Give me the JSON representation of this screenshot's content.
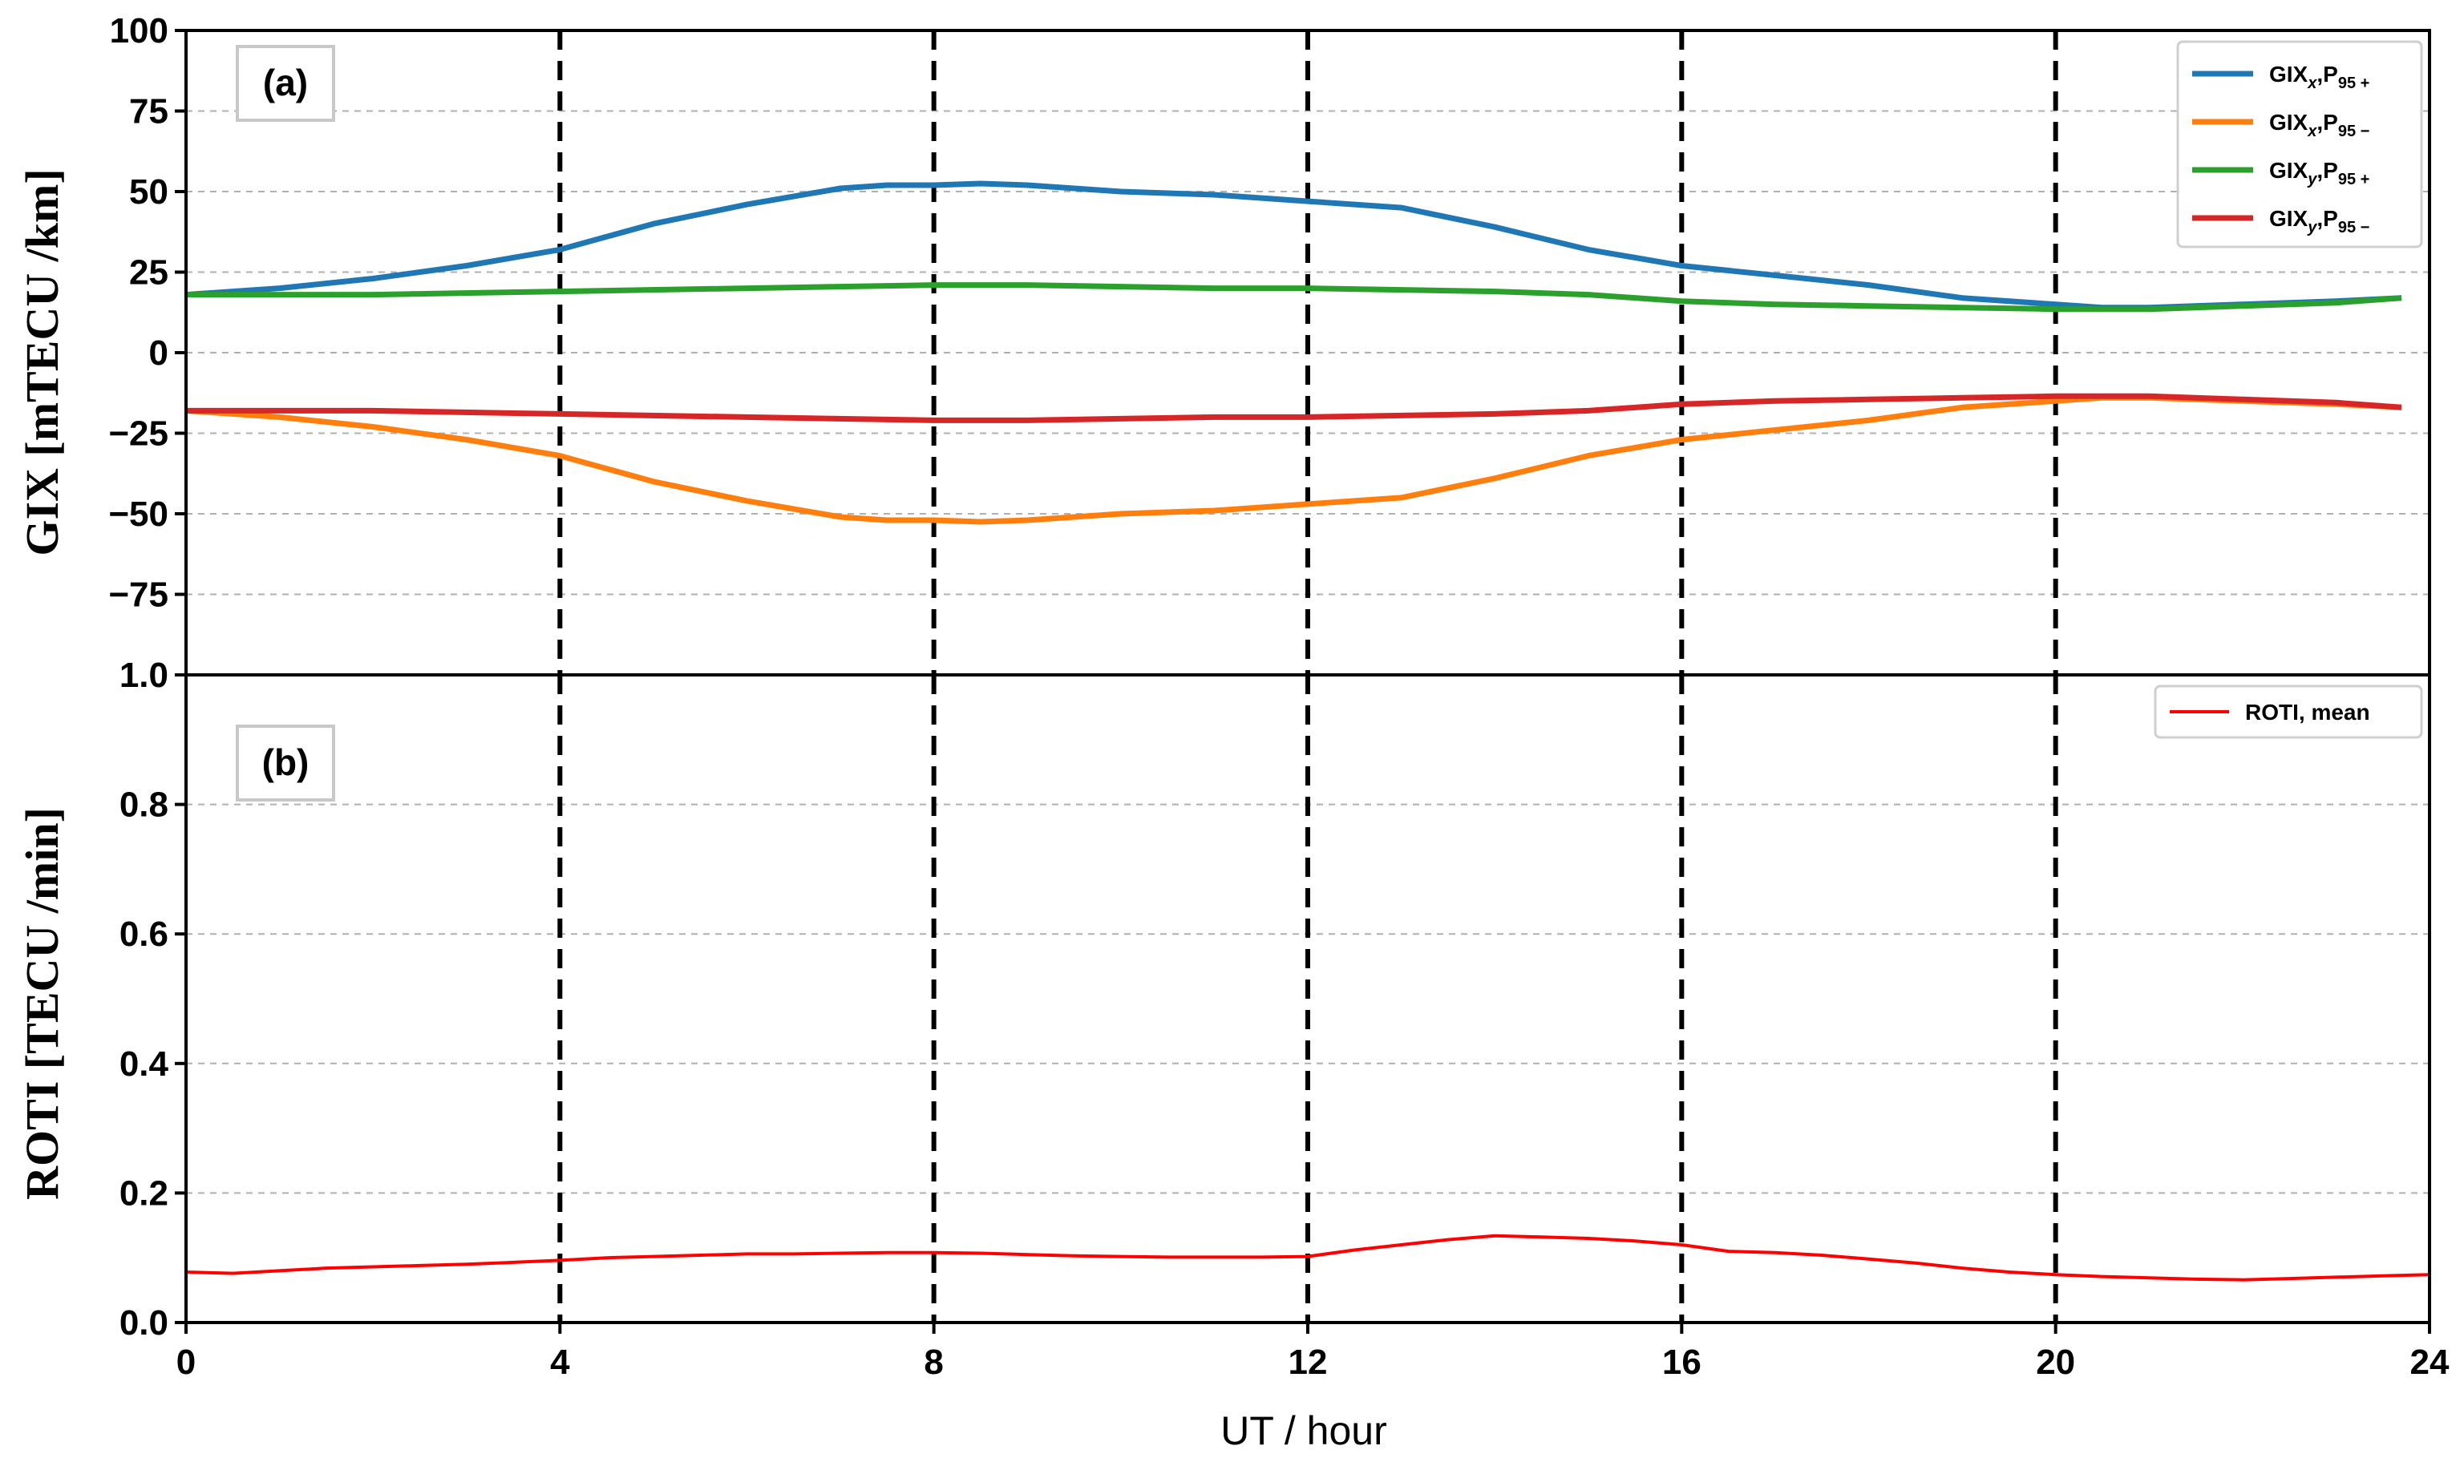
{
  "chart_data": [
    {
      "type": "line",
      "panel_label": "(a)",
      "ylabel": "GIX [mTECU /km]",
      "xlabel": "",
      "xlim": [
        0,
        24
      ],
      "ylim": [
        -100,
        100
      ],
      "yticks": [
        -100,
        -75,
        -50,
        -25,
        0,
        25,
        50,
        75,
        100
      ],
      "ytick_labels": [
        "",
        "−75",
        "−50",
        "−25",
        "0",
        "25",
        "50",
        "75",
        "100"
      ],
      "grid": "horizontal dashed",
      "legend_position": "top-right",
      "vlines": [
        4,
        8,
        12,
        16,
        20
      ],
      "series": [
        {
          "name": "GIXx,P95+",
          "legend": {
            "base": "GIX",
            "sub1": "x",
            "mid": ",P",
            "sub2": "95 +"
          },
          "color": "#1f77b4",
          "x": [
            0,
            1,
            2,
            3,
            4,
            5,
            6,
            7,
            7.5,
            8,
            8.5,
            9,
            10,
            11,
            12,
            13,
            14,
            15,
            16,
            17,
            18,
            19,
            20,
            20.5,
            21,
            22,
            23,
            23.7
          ],
          "y": [
            18,
            20,
            23,
            27,
            32,
            40,
            46,
            51,
            52,
            52,
            52.5,
            52,
            50,
            49,
            47,
            45,
            39,
            32,
            27,
            24,
            21,
            17,
            15,
            14,
            14,
            15,
            16,
            17
          ]
        },
        {
          "name": "GIXx,P95−",
          "legend": {
            "base": "GIX",
            "sub1": "x",
            "mid": ",P",
            "sub2": "95 −"
          },
          "color": "#ff7f0e",
          "x": [
            0,
            1,
            2,
            3,
            4,
            5,
            6,
            7,
            7.5,
            8,
            8.5,
            9,
            10,
            11,
            12,
            13,
            14,
            15,
            16,
            17,
            18,
            19,
            20,
            20.5,
            21,
            22,
            23,
            23.7
          ],
          "y": [
            -18,
            -20,
            -23,
            -27,
            -32,
            -40,
            -46,
            -51,
            -52,
            -52,
            -52.5,
            -52,
            -50,
            -49,
            -47,
            -45,
            -39,
            -32,
            -27,
            -24,
            -21,
            -17,
            -15,
            -14,
            -14,
            -15,
            -16,
            -17
          ]
        },
        {
          "name": "GIXy,P95+",
          "legend": {
            "base": "GIX",
            "sub1": "y",
            "mid": ",P",
            "sub2": "95 +"
          },
          "color": "#2ca02c",
          "x": [
            0,
            2,
            4,
            6,
            8,
            9,
            10,
            11,
            12,
            13,
            14,
            15,
            16,
            17,
            18,
            19,
            20,
            21,
            22,
            23,
            23.7
          ],
          "y": [
            18,
            18,
            19,
            20,
            21,
            21,
            20.5,
            20,
            20,
            19.5,
            19,
            18,
            16,
            15,
            14.5,
            14,
            13.5,
            13.5,
            14.5,
            15.5,
            17
          ]
        },
        {
          "name": "GIXy,P95−",
          "legend": {
            "base": "GIX",
            "sub1": "y",
            "mid": ",P",
            "sub2": "95 −"
          },
          "color": "#d62728",
          "x": [
            0,
            2,
            4,
            6,
            8,
            9,
            10,
            11,
            12,
            13,
            14,
            15,
            16,
            17,
            18,
            19,
            20,
            21,
            22,
            23,
            23.7
          ],
          "y": [
            -18,
            -18,
            -19,
            -20,
            -21,
            -21,
            -20.5,
            -20,
            -20,
            -19.5,
            -19,
            -18,
            -16,
            -15,
            -14.5,
            -14,
            -13.5,
            -13.5,
            -14.5,
            -15.5,
            -17
          ]
        }
      ]
    },
    {
      "type": "line",
      "panel_label": "(b)",
      "ylabel": "ROTI [TECU /min]",
      "xlabel": "UT / hour",
      "xlim": [
        0,
        24
      ],
      "ylim": [
        0,
        1
      ],
      "yticks": [
        0,
        0.2,
        0.4,
        0.6,
        0.8,
        1.0
      ],
      "ytick_labels": [
        "0.0",
        "0.2",
        "0.4",
        "0.6",
        "0.8",
        "1.0"
      ],
      "xticks": [
        0,
        4,
        8,
        12,
        16,
        20,
        24
      ],
      "xtick_labels": [
        "0",
        "4",
        "8",
        "12",
        "16",
        "20",
        "24"
      ],
      "grid": "horizontal dashed",
      "legend_position": "top-right",
      "vlines": [
        4,
        8,
        12,
        16,
        20
      ],
      "series": [
        {
          "name": "ROTI, mean",
          "color": "#ff0000",
          "x": [
            0,
            0.5,
            1,
            1.5,
            2,
            2.5,
            3,
            3.5,
            4,
            4.5,
            5,
            5.5,
            6,
            6.5,
            7,
            7.5,
            8,
            8.5,
            9,
            9.5,
            10,
            10.5,
            11,
            11.5,
            12,
            12.5,
            13,
            13.5,
            14,
            14.5,
            15,
            15.5,
            16,
            16.5,
            17,
            17.5,
            18,
            18.5,
            19,
            19.5,
            20,
            20.5,
            21,
            21.5,
            22,
            22.5,
            23,
            23.5,
            24
          ],
          "y": [
            0.078,
            0.076,
            0.08,
            0.084,
            0.086,
            0.088,
            0.09,
            0.093,
            0.096,
            0.1,
            0.102,
            0.104,
            0.106,
            0.106,
            0.107,
            0.108,
            0.108,
            0.107,
            0.105,
            0.103,
            0.102,
            0.101,
            0.101,
            0.101,
            0.102,
            0.112,
            0.12,
            0.128,
            0.134,
            0.132,
            0.13,
            0.126,
            0.12,
            0.11,
            0.108,
            0.104,
            0.098,
            0.092,
            0.084,
            0.078,
            0.074,
            0.071,
            0.069,
            0.067,
            0.066,
            0.068,
            0.07,
            0.072,
            0.074
          ]
        }
      ]
    }
  ]
}
